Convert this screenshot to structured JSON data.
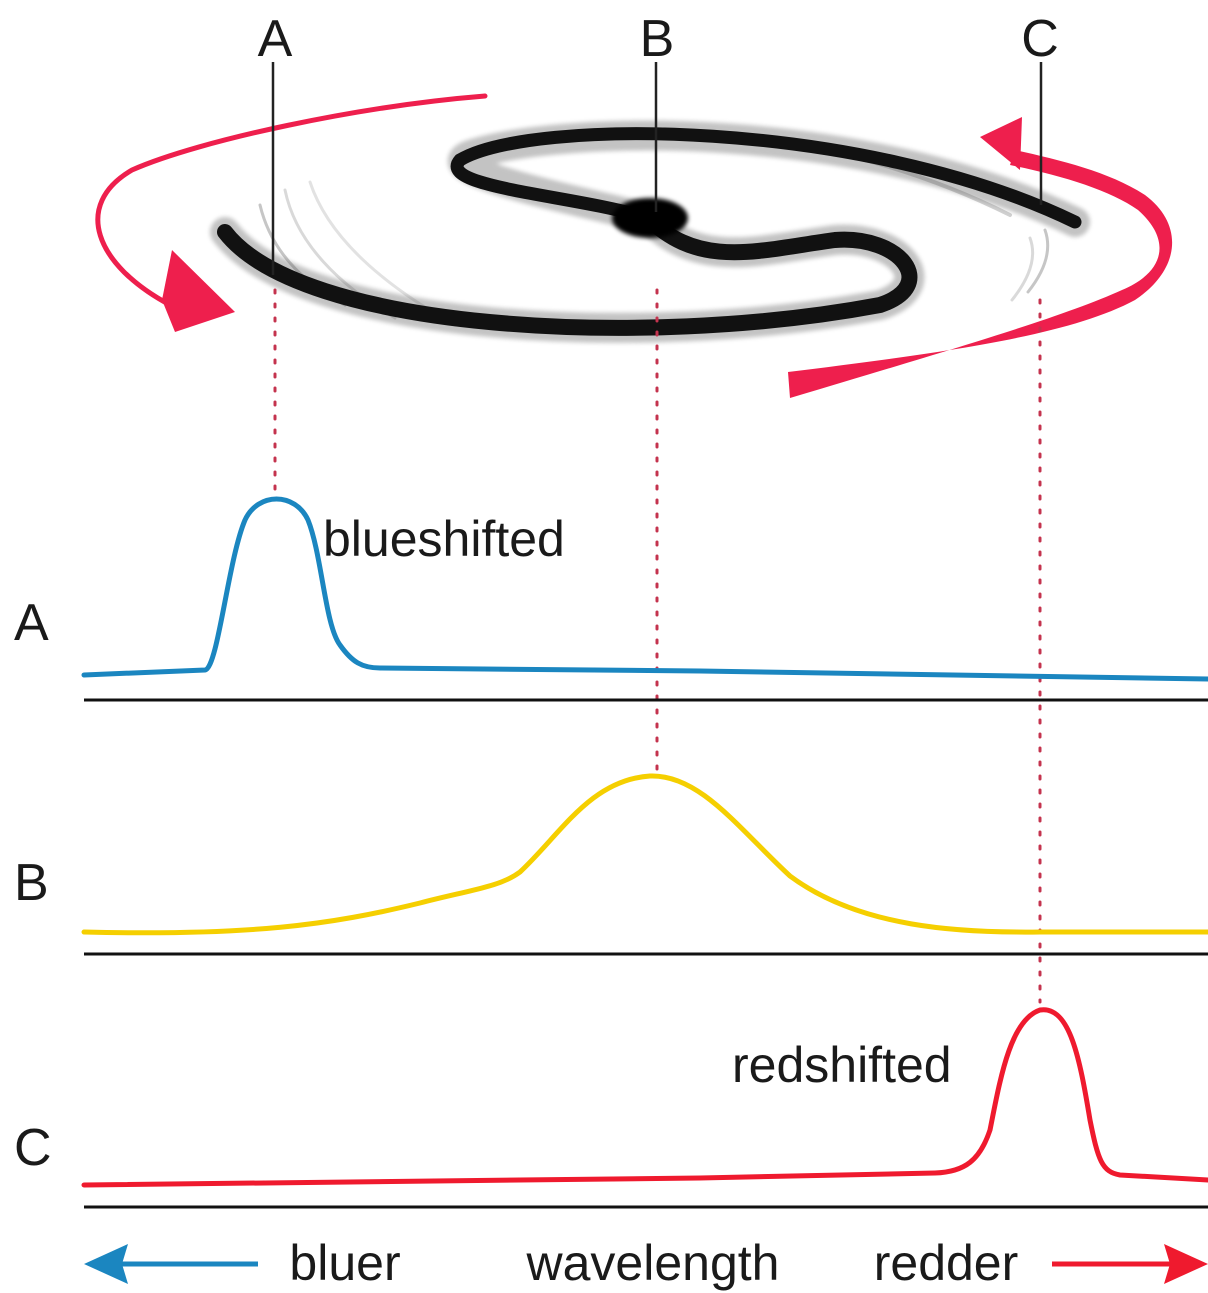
{
  "galaxy_labels": {
    "a": "A",
    "b": "B",
    "c": "C"
  },
  "row_labels": {
    "a": "A",
    "b": "B",
    "c": "C"
  },
  "annotations": {
    "blueshifted": "blueshifted",
    "redshifted": "redshifted"
  },
  "axis": {
    "left": "bluer",
    "center": "wavelength",
    "right": "redder"
  },
  "colors": {
    "blue_line": "#1b86c0",
    "yellow_line": "#f5cf00",
    "red_line": "#ef1a2e",
    "rotation_arrow": "#ee1f4d",
    "guide_dots": "#c4334e",
    "galaxy": "#111111"
  }
}
